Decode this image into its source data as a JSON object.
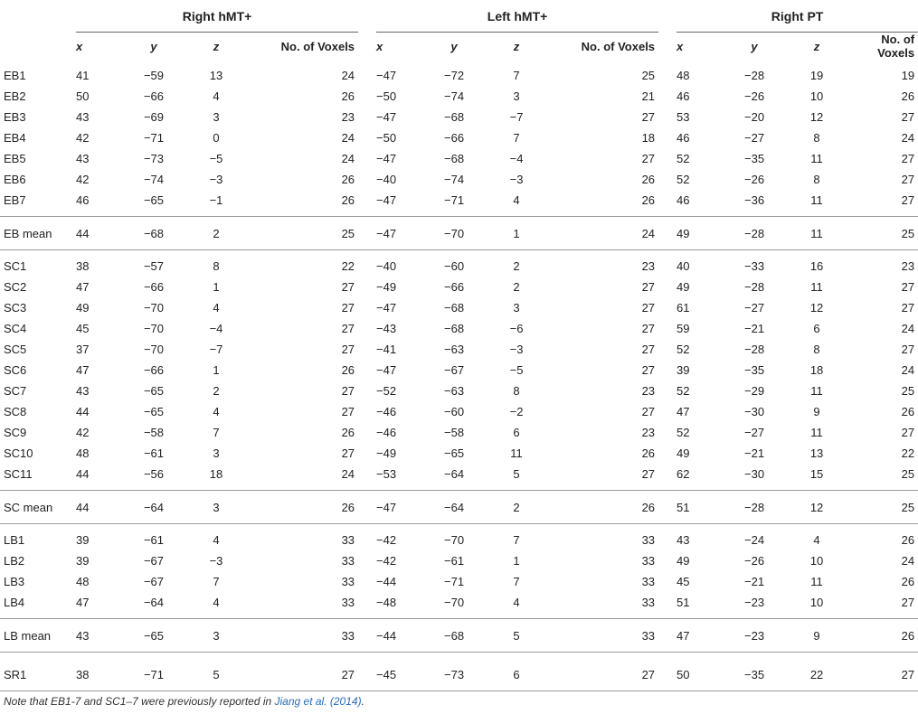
{
  "table": {
    "groups": [
      "Right hMT+",
      "Left hMT+",
      "Right PT"
    ],
    "columns": [
      "x",
      "y",
      "z",
      "No. of Voxels"
    ],
    "sections": [
      {
        "rows": [
          {
            "label": "EB1",
            "v": [
              "41",
              "−59",
              "13",
              "24",
              "−47",
              "−72",
              "7",
              "25",
              "48",
              "−28",
              "19",
              "19"
            ]
          },
          {
            "label": "EB2",
            "v": [
              "50",
              "−66",
              "4",
              "26",
              "−50",
              "−74",
              "3",
              "21",
              "46",
              "−26",
              "10",
              "26"
            ]
          },
          {
            "label": "EB3",
            "v": [
              "43",
              "−69",
              "3",
              "23",
              "−47",
              "−68",
              "−7",
              "27",
              "53",
              "−20",
              "12",
              "27"
            ]
          },
          {
            "label": "EB4",
            "v": [
              "42",
              "−71",
              "0",
              "24",
              "−50",
              "−66",
              "7",
              "18",
              "46",
              "−27",
              "8",
              "24"
            ]
          },
          {
            "label": "EB5",
            "v": [
              "43",
              "−73",
              "−5",
              "24",
              "−47",
              "−68",
              "−4",
              "27",
              "52",
              "−35",
              "11",
              "27"
            ]
          },
          {
            "label": "EB6",
            "v": [
              "42",
              "−74",
              "−3",
              "26",
              "−40",
              "−74",
              "−3",
              "26",
              "52",
              "−26",
              "8",
              "27"
            ]
          },
          {
            "label": "EB7",
            "v": [
              "46",
              "−65",
              "−1",
              "26",
              "−47",
              "−71",
              "4",
              "26",
              "46",
              "−36",
              "11",
              "27"
            ]
          }
        ],
        "mean": {
          "label": "EB mean",
          "v": [
            "44",
            "−68",
            "2",
            "25",
            "−47",
            "−70",
            "1",
            "24",
            "49",
            "−28",
            "11",
            "25"
          ]
        }
      },
      {
        "rows": [
          {
            "label": "SC1",
            "v": [
              "38",
              "−57",
              "8",
              "22",
              "−40",
              "−60",
              "2",
              "23",
              "40",
              "−33",
              "16",
              "23"
            ]
          },
          {
            "label": "SC2",
            "v": [
              "47",
              "−66",
              "1",
              "27",
              "−49",
              "−66",
              "2",
              "27",
              "49",
              "−28",
              "11",
              "27"
            ]
          },
          {
            "label": "SC3",
            "v": [
              "49",
              "−70",
              "4",
              "27",
              "−47",
              "−68",
              "3",
              "27",
              "61",
              "−27",
              "12",
              "27"
            ]
          },
          {
            "label": "SC4",
            "v": [
              "45",
              "−70",
              "−4",
              "27",
              "−43",
              "−68",
              "−6",
              "27",
              "59",
              "−21",
              "6",
              "24"
            ]
          },
          {
            "label": "SC5",
            "v": [
              "37",
              "−70",
              "−7",
              "27",
              "−41",
              "−63",
              "−3",
              "27",
              "52",
              "−28",
              "8",
              "27"
            ]
          },
          {
            "label": "SC6",
            "v": [
              "47",
              "−66",
              "1",
              "26",
              "−47",
              "−67",
              "−5",
              "27",
              "39",
              "−35",
              "18",
              "24"
            ]
          },
          {
            "label": "SC7",
            "v": [
              "43",
              "−65",
              "2",
              "27",
              "−52",
              "−63",
              "8",
              "23",
              "52",
              "−29",
              "11",
              "25"
            ]
          },
          {
            "label": "SC8",
            "v": [
              "44",
              "−65",
              "4",
              "27",
              "−46",
              "−60",
              "−2",
              "27",
              "47",
              "−30",
              "9",
              "26"
            ]
          },
          {
            "label": "SC9",
            "v": [
              "42",
              "−58",
              "7",
              "26",
              "−46",
              "−58",
              "6",
              "23",
              "52",
              "−27",
              "11",
              "27"
            ]
          },
          {
            "label": "SC10",
            "v": [
              "48",
              "−61",
              "3",
              "27",
              "−49",
              "−65",
              "11",
              "26",
              "49",
              "−21",
              "13",
              "22"
            ]
          },
          {
            "label": "SC11",
            "v": [
              "44",
              "−56",
              "18",
              "24",
              "−53",
              "−64",
              "5",
              "27",
              "62",
              "−30",
              "15",
              "25"
            ]
          }
        ],
        "mean": {
          "label": "SC mean",
          "v": [
            "44",
            "−64",
            "3",
            "26",
            "−47",
            "−64",
            "2",
            "26",
            "51",
            "−28",
            "12",
            "25"
          ]
        }
      },
      {
        "rows": [
          {
            "label": "LB1",
            "v": [
              "39",
              "−61",
              "4",
              "33",
              "−42",
              "−70",
              "7",
              "33",
              "43",
              "−24",
              "4",
              "26"
            ]
          },
          {
            "label": "LB2",
            "v": [
              "39",
              "−67",
              "−3",
              "33",
              "−42",
              "−61",
              "1",
              "33",
              "49",
              "−26",
              "10",
              "24"
            ]
          },
          {
            "label": "LB3",
            "v": [
              "48",
              "−67",
              "7",
              "33",
              "−44",
              "−71",
              "7",
              "33",
              "45",
              "−21",
              "11",
              "26"
            ]
          },
          {
            "label": "LB4",
            "v": [
              "47",
              "−64",
              "4",
              "33",
              "−48",
              "−70",
              "4",
              "33",
              "51",
              "−23",
              "10",
              "27"
            ]
          }
        ],
        "mean": {
          "label": "LB mean",
          "v": [
            "43",
            "−65",
            "3",
            "33",
            "−44",
            "−68",
            "5",
            "33",
            "47",
            "−23",
            "9",
            "26"
          ]
        }
      }
    ],
    "final": {
      "label": "SR1",
      "v": [
        "38",
        "−71",
        "5",
        "27",
        "−45",
        "−73",
        "6",
        "27",
        "50",
        "−35",
        "22",
        "27"
      ]
    }
  },
  "note": {
    "text_before": "Note that EB1-7 and SC1–7 were previously reported in ",
    "reference": "Jiang et al. (2014)",
    "text_after": "."
  }
}
